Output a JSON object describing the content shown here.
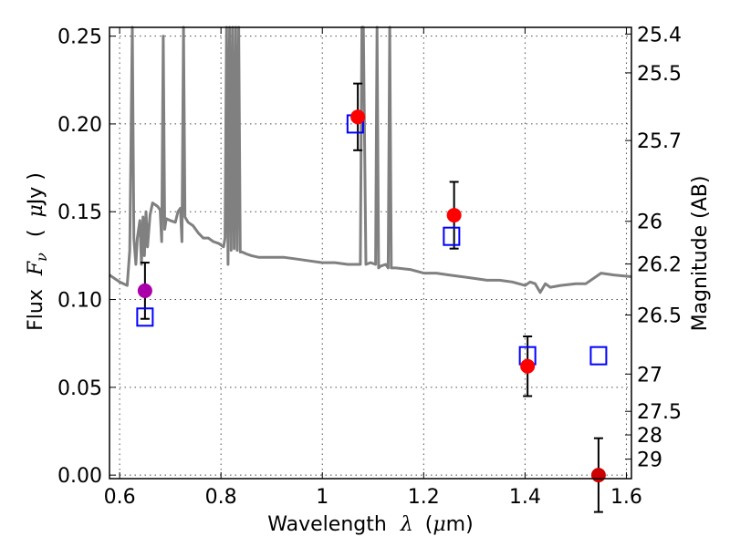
{
  "chart_data": {
    "type": "scatter",
    "xlabel_text": "Wavelength",
    "xlabel_symbol": "λ",
    "xlabel_unit_open": "(",
    "xlabel_unit_mu": "μ",
    "xlabel_unit_rest": "m)",
    "ylabel_text": "Flux",
    "ylabel_symbol": "F",
    "ylabel_subscript": "ν",
    "ylabel_unit_open": "(",
    "ylabel_unit_mu": "μ",
    "ylabel_unit_rest": "Jy )",
    "y2label": "Magnitude (AB)",
    "xlim": [
      0.58,
      1.61
    ],
    "ylim": [
      -0.002,
      0.255
    ],
    "grid": true,
    "xticks": [
      {
        "value": 0.6,
        "label": "0.6"
      },
      {
        "value": 0.8,
        "label": "0.8"
      },
      {
        "value": 1.0,
        "label": "1"
      },
      {
        "value": 1.2,
        "label": "1.2"
      },
      {
        "value": 1.4,
        "label": "1.4"
      },
      {
        "value": 1.6,
        "label": "1.6"
      }
    ],
    "yticks": [
      {
        "value": 0.0,
        "label": "0.00"
      },
      {
        "value": 0.05,
        "label": "0.05"
      },
      {
        "value": 0.1,
        "label": "0.10"
      },
      {
        "value": 0.15,
        "label": "0.15"
      },
      {
        "value": 0.2,
        "label": "0.20"
      },
      {
        "value": 0.25,
        "label": "0.25"
      }
    ],
    "y2ticks": [
      "25.4",
      "25.5",
      "25.7",
      "26",
      "26.2",
      "26.5",
      "27",
      "27.5",
      "28",
      "29"
    ],
    "series": [
      {
        "kind": "observed",
        "marker": "circle",
        "points": [
          {
            "x": 0.65,
            "y": 0.105,
            "yerr": 0.016,
            "color": "#aa00aa"
          },
          {
            "x": 1.07,
            "y": 0.204,
            "yerr": 0.019,
            "color": "#ff0000"
          },
          {
            "x": 1.26,
            "y": 0.148,
            "yerr": 0.019,
            "color": "#ff0000"
          },
          {
            "x": 1.405,
            "y": 0.062,
            "yerr": 0.017,
            "color": "#ff0000"
          },
          {
            "x": 1.545,
            "y": 0.0,
            "yerr": 0.021,
            "color": "#cc0000"
          }
        ]
      },
      {
        "kind": "model_photometry",
        "marker": "square",
        "color": "#0000ff",
        "points": [
          {
            "x": 0.65,
            "y": 0.09
          },
          {
            "x": 1.065,
            "y": 0.2
          },
          {
            "x": 1.255,
            "y": 0.136
          },
          {
            "x": 1.405,
            "y": 0.068
          },
          {
            "x": 1.545,
            "y": 0.068
          }
        ]
      },
      {
        "kind": "model_spectrum",
        "color": "#808080",
        "x": [
          0.58,
          0.6,
          0.615,
          0.62,
          0.625,
          0.628,
          0.632,
          0.635,
          0.64,
          0.643,
          0.646,
          0.649,
          0.652,
          0.655,
          0.66,
          0.665,
          0.67,
          0.675,
          0.68,
          0.683,
          0.686,
          0.689,
          0.692,
          0.7,
          0.71,
          0.715,
          0.72,
          0.723,
          0.726,
          0.729,
          0.735,
          0.745,
          0.755,
          0.765,
          0.775,
          0.785,
          0.795,
          0.8,
          0.805,
          0.808,
          0.811,
          0.814,
          0.817,
          0.82,
          0.823,
          0.826,
          0.829,
          0.832,
          0.835,
          0.838,
          0.842,
          0.85,
          0.86,
          0.875,
          0.9,
          0.925,
          0.95,
          0.975,
          1.0,
          1.025,
          1.05,
          1.065,
          1.075,
          1.078,
          1.081,
          1.086,
          1.095,
          1.105,
          1.108,
          1.111,
          1.115,
          1.125,
          1.13,
          1.133,
          1.136,
          1.145,
          1.175,
          1.2,
          1.225,
          1.25,
          1.275,
          1.3,
          1.325,
          1.35,
          1.375,
          1.4,
          1.41,
          1.42,
          1.43,
          1.44,
          1.45,
          1.47,
          1.5,
          1.52,
          1.55,
          1.575,
          1.61
        ],
        "y": [
          0.114,
          0.11,
          0.108,
          0.128,
          0.255,
          0.135,
          0.12,
          0.135,
          0.145,
          0.12,
          0.147,
          0.125,
          0.15,
          0.13,
          0.148,
          0.155,
          0.154,
          0.153,
          0.151,
          0.133,
          0.25,
          0.14,
          0.146,
          0.145,
          0.144,
          0.15,
          0.152,
          0.133,
          0.255,
          0.147,
          0.144,
          0.142,
          0.138,
          0.135,
          0.135,
          0.133,
          0.132,
          0.131,
          0.13,
          0.135,
          0.255,
          0.12,
          0.255,
          0.128,
          0.255,
          0.129,
          0.255,
          0.128,
          0.255,
          0.127,
          0.127,
          0.126,
          0.125,
          0.124,
          0.124,
          0.124,
          0.123,
          0.122,
          0.121,
          0.121,
          0.12,
          0.12,
          0.12,
          0.255,
          0.255,
          0.12,
          0.121,
          0.12,
          0.255,
          0.118,
          0.119,
          0.12,
          0.118,
          0.255,
          0.118,
          0.118,
          0.117,
          0.115,
          0.115,
          0.114,
          0.113,
          0.112,
          0.111,
          0.111,
          0.11,
          0.108,
          0.11,
          0.109,
          0.104,
          0.109,
          0.107,
          0.108,
          0.109,
          0.109,
          0.115,
          0.114,
          0.113
        ]
      }
    ]
  }
}
